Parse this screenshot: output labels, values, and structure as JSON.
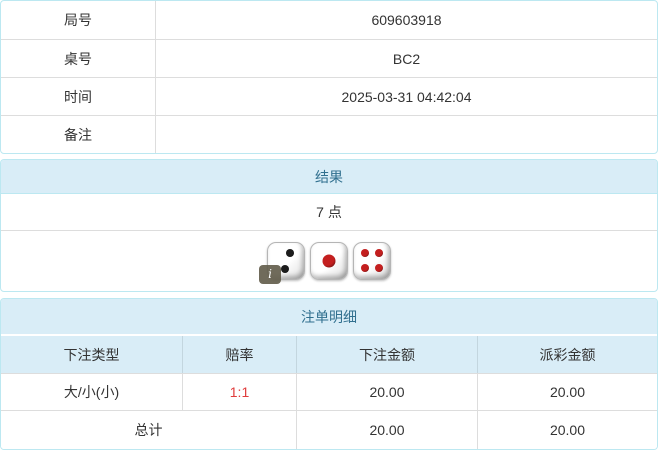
{
  "accent": {
    "panel_border": "#bce8f1",
    "heading_bg": "#d9edf7",
    "heading_text": "#31708f",
    "table_border": "#dddddd",
    "odds_color": "#e03c3c",
    "pip_black": "#1c1c1c",
    "pip_red": "#c41f1f"
  },
  "info": {
    "rows": [
      {
        "label": "局号",
        "value": "609603918"
      },
      {
        "label": "桌号",
        "value": "BC2"
      },
      {
        "label": "时间",
        "value": "2025-03-31 04:42:04"
      },
      {
        "label": "备注",
        "value": ""
      }
    ]
  },
  "result": {
    "heading": "结果",
    "points": "7 点",
    "dice": [
      {
        "value": 2,
        "color": "#1c1c1c"
      },
      {
        "value": 1,
        "color": "#c41f1f"
      },
      {
        "value": 4,
        "color": "#c41f1f"
      }
    ],
    "info_badge": "i"
  },
  "bets": {
    "heading": "注单明细",
    "columns": [
      "下注类型",
      "赔率",
      "下注金额",
      "派彩金额"
    ],
    "rows": [
      {
        "type": "大/小(小)",
        "odds": "1:1",
        "bet_amount": "20.00",
        "payout_amount": "20.00"
      }
    ],
    "total": {
      "label": "总计",
      "bet_amount": "20.00",
      "payout_amount": "20.00"
    }
  }
}
